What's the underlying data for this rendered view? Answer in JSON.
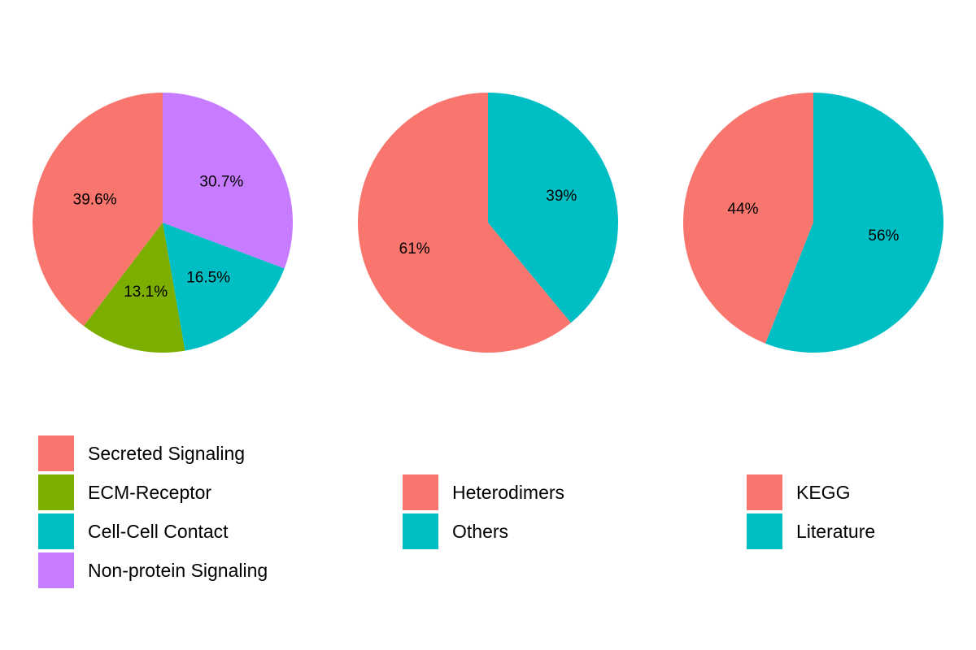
{
  "chart_data": [
    {
      "type": "pie",
      "slices": [
        {
          "name": "Secreted Signaling",
          "value": 39.6,
          "label": "39.6%",
          "color": "#F8766D"
        },
        {
          "name": "ECM-Receptor",
          "value": 13.1,
          "label": "13.1%",
          "color": "#7CAE00"
        },
        {
          "name": "Cell-Cell Contact",
          "value": 16.5,
          "label": "16.5%",
          "color": "#00BFC4"
        },
        {
          "name": "Non-protein Signaling",
          "value": 30.7,
          "label": "30.7%",
          "color": "#C77CFF"
        }
      ],
      "legend": [
        "Secreted Signaling",
        "ECM-Receptor",
        "Cell-Cell Contact",
        "Non-protein Signaling"
      ],
      "legend_position": "bottom-left"
    },
    {
      "type": "pie",
      "slices": [
        {
          "name": "Heterodimers",
          "value": 61,
          "label": "61%",
          "color": "#F8766D"
        },
        {
          "name": "Others",
          "value": 39,
          "label": "39%",
          "color": "#00BFC4"
        }
      ],
      "legend": [
        "Heterodimers",
        "Others"
      ],
      "legend_position": "bottom-center"
    },
    {
      "type": "pie",
      "slices": [
        {
          "name": "KEGG",
          "value": 44,
          "label": "44%",
          "color": "#F8766D"
        },
        {
          "name": "Literature",
          "value": 56,
          "label": "56%",
          "color": "#00BFC4"
        }
      ],
      "legend": [
        "KEGG",
        "Literature"
      ],
      "legend_position": "bottom-right"
    }
  ]
}
